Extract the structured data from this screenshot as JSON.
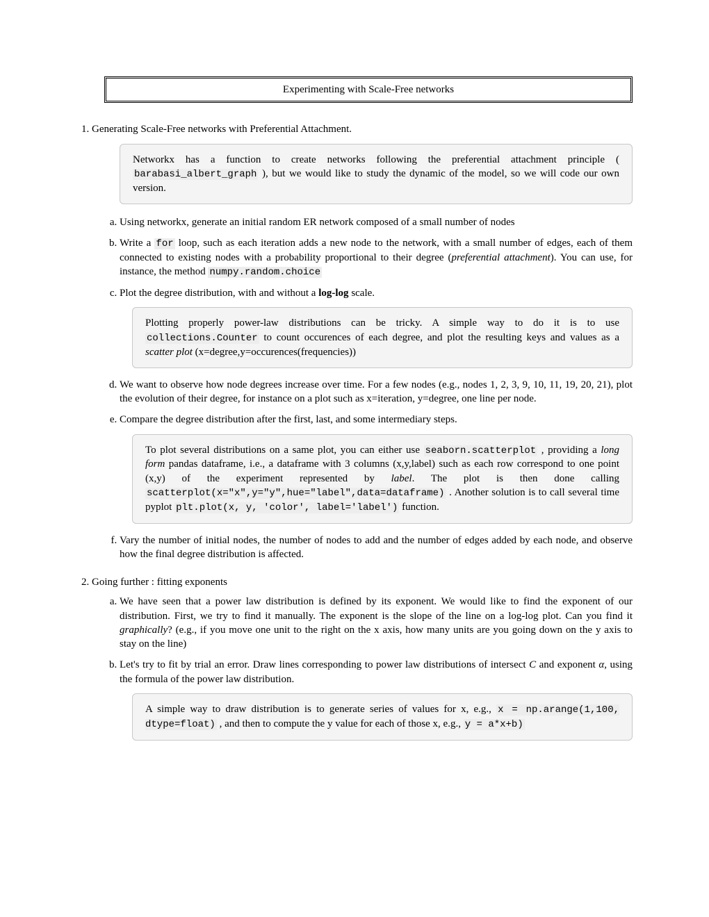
{
  "title": "Experimenting with Scale-Free networks",
  "items": [
    {
      "lead": "Generating Scale-Free networks with Preferential Attachment.",
      "note1_a": "Networkx has a function to create networks following the preferential attachment principle ( ",
      "note1_code": "barabasi_albert_graph",
      "note1_b": " ), but we would like to study the dynamic of the model, so we will code our own version.",
      "sub": {
        "a": "Using networkx, generate an initial random ER network composed of a small number of nodes",
        "b_1": "Write a ",
        "b_code1": "for",
        "b_2": " loop, such as each iteration adds a new node to the network, with a small number of edges, each of them connected to existing nodes with a probability proportional to their degree (",
        "b_em": "preferential attachment",
        "b_3": "). You can use, for instance, the method ",
        "b_code2": "numpy.random.choice",
        "c_1": "Plot the degree distribution, with and without a ",
        "c_strong": "log-log",
        "c_2": " scale.",
        "c_note_1": "Plotting properly power-law distributions can be tricky. A simple way to do it is to use ",
        "c_note_code": "collections.Counter",
        "c_note_2": " to count occurences of each degree, and plot the resulting keys and values as a ",
        "c_note_em": "scatter plot",
        "c_note_3": " (x=degree,y=occurences(frequencies))",
        "d": "We want to observe how node degrees increase over time. For a few nodes (e.g., nodes 1, 2, 3, 9, 10, 11, 19, 20, 21), plot the evolution of their degree, for instance on a plot such as x=iteration, y=degree, one line per node.",
        "e": "Compare the degree distribution after the first, last, and some intermediary steps.",
        "e_note_1": "To plot several distributions on a same plot, you can either use ",
        "e_note_code1": "seaborn.scatterplot",
        "e_note_2": " , providing a ",
        "e_note_em1": "long form",
        "e_note_3": " pandas dataframe, i.e., a dataframe with 3 columns (x,y,label) such as each row correspond to one point (x,y) of the experiment represented by ",
        "e_note_em2": "label",
        "e_note_4": ". The plot is then done calling ",
        "e_note_code2": "scatterplot(x=\"x\",y=\"y\",hue=\"label\",data=dataframe)",
        "e_note_5": " . Another solution is to call several time pyplot ",
        "e_note_code3": "plt.plot(x, y, 'color', label='label')",
        "e_note_6": " function.",
        "f": "Vary the number of initial nodes, the number of nodes to add and the number of edges added by each node, and observe how the final degree distribution is affected."
      }
    },
    {
      "lead": "Going further : fitting exponents",
      "sub": {
        "a_1": "We have seen that a power law distribution is defined by its exponent. We would like to find the exponent of our distribution. First, we try to find it manually. The exponent is the slope of the line on a log-log plot. Can you find it ",
        "a_em": "graphically",
        "a_2": "? (e.g., if you move one unit to the right on the x axis, how many units are you going down on the y axis to stay on the line)",
        "b_1": "Let's try to fit by trial an error. Draw lines corresponding to power law distributions of intersect ",
        "b_em1": "C",
        "b_2": " and exponent ",
        "b_em2": "α",
        "b_3": ", using the formula of the power law distribution.",
        "b_note_1": "A simple way to draw distribution is to generate series of values for x, e.g., ",
        "b_note_code1": "x = np.arange(1,100, dtype=float)",
        "b_note_2": " , and then to compute the y value for each of those x, e.g., ",
        "b_note_code2": "y = a*x+b)",
        "b_note_3": ""
      }
    }
  ]
}
